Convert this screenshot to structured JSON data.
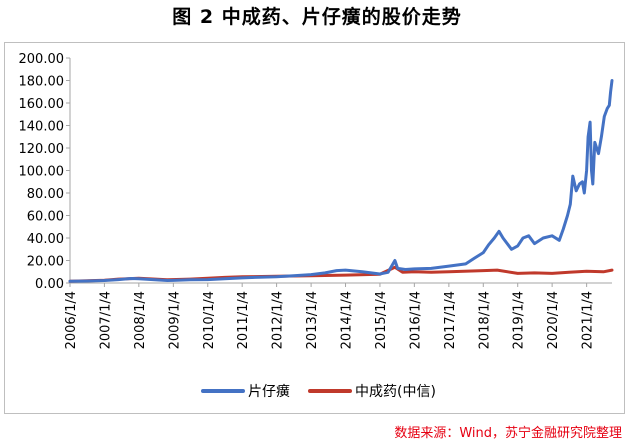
{
  "figure": {
    "title": "图 2  中成药、片仔癀的股价走势",
    "source": "数据来源：Wind，苏宁金融研究院整理"
  },
  "colors": {
    "series_pianzaihuang": "#4472c4",
    "series_zhongchengyao": "#c0392b",
    "axis": "#a6a6a6",
    "source_text": "#e60012"
  },
  "chart_data": {
    "type": "line",
    "title": "图 2  中成药、片仔癀的股价走势",
    "xlabel": "",
    "ylabel": "",
    "ylim": [
      0,
      200
    ],
    "y_ticks": [
      "0.00",
      "20.00",
      "40.00",
      "60.00",
      "80.00",
      "100.00",
      "120.00",
      "140.00",
      "160.00",
      "180.00",
      "200.00"
    ],
    "x_ticks": [
      "2006/1/4",
      "2007/1/4",
      "2008/1/4",
      "2009/1/4",
      "2010/1/4",
      "2011/1/4",
      "2012/1/4",
      "2013/1/4",
      "2014/1/4",
      "2015/1/4",
      "2016/1/4",
      "2017/1/4",
      "2018/1/4",
      "2019/1/4",
      "2020/1/4",
      "2021/1/4"
    ],
    "x_range": [
      "2006/1/4",
      "2021/9/30"
    ],
    "grid": false,
    "legend_position": "bottom",
    "series": [
      {
        "name": "片仔癀",
        "x": [
          "2006/1/4",
          "2006/7/1",
          "2007/1/4",
          "2007/6/1",
          "2007/10/15",
          "2008/1/4",
          "2008/6/1",
          "2008/11/1",
          "2009/1/4",
          "2009/7/1",
          "2010/1/4",
          "2010/7/1",
          "2011/1/4",
          "2011/7/1",
          "2012/1/4",
          "2012/7/1",
          "2013/1/4",
          "2013/6/1",
          "2013/10/1",
          "2014/1/4",
          "2014/7/1",
          "2015/1/4",
          "2015/4/1",
          "2015/6/12",
          "2015/7/10",
          "2015/10/1",
          "2016/1/4",
          "2016/7/1",
          "2017/1/4",
          "2017/7/1",
          "2017/10/1",
          "2018/1/4",
          "2018/3/1",
          "2018/5/1",
          "2018/6/20",
          "2018/8/1",
          "2018/10/30",
          "2019/1/4",
          "2019/3/1",
          "2019/5/1",
          "2019/7/1",
          "2019/10/1",
          "2020/1/4",
          "2020/3/20",
          "2020/5/1",
          "2020/6/15",
          "2020/7/15",
          "2020/8/10",
          "2020/9/15",
          "2020/10/20",
          "2020/11/20",
          "2020/12/10",
          "2021/1/4",
          "2021/1/20",
          "2021/2/10",
          "2021/2/25",
          "2021/3/10",
          "2021/4/1",
          "2021/5/10",
          "2021/6/10",
          "2021/7/10",
          "2021/8/10",
          "2021/9/1",
          "2021/9/15",
          "2021/9/30"
        ],
        "values": [
          1.5,
          1.8,
          2.2,
          3.0,
          4.0,
          3.8,
          3.0,
          2.2,
          2.3,
          2.8,
          3.0,
          3.8,
          4.5,
          5.2,
          5.5,
          6.5,
          7.5,
          9.0,
          11.0,
          11.5,
          10.0,
          8.0,
          9.5,
          20.0,
          13.0,
          12.0,
          12.5,
          13.0,
          15.0,
          17.0,
          22.0,
          27.0,
          34.0,
          40.0,
          46.0,
          40.0,
          30.0,
          33.0,
          40.0,
          42.0,
          35.0,
          40.0,
          42.0,
          38.0,
          48.0,
          60.0,
          70.0,
          95.0,
          82.0,
          88.0,
          90.0,
          80.0,
          100.0,
          130.0,
          143.0,
          100.0,
          88.0,
          125.0,
          115.0,
          130.0,
          148.0,
          155.0,
          158.0,
          170.0,
          180.0
        ]
      },
      {
        "name": "中成药(中信)",
        "x": [
          "2006/1/4",
          "2007/1/4",
          "2007/6/1",
          "2008/1/4",
          "2008/11/1",
          "2009/7/1",
          "2010/1/4",
          "2010/7/1",
          "2011/1/4",
          "2012/1/4",
          "2013/1/4",
          "2014/1/4",
          "2015/1/4",
          "2015/6/12",
          "2015/9/1",
          "2016/1/4",
          "2016/7/1",
          "2017/1/4",
          "2018/1/4",
          "2018/6/1",
          "2019/1/4",
          "2019/7/1",
          "2020/1/4",
          "2020/7/1",
          "2021/1/4",
          "2021/7/1",
          "2021/9/30"
        ],
        "values": [
          1.5,
          2.5,
          3.5,
          4.2,
          2.8,
          3.5,
          4.2,
          5.0,
          5.5,
          6.0,
          6.5,
          7.0,
          7.8,
          14.0,
          9.5,
          10.0,
          9.5,
          10.0,
          11.0,
          11.5,
          8.5,
          9.0,
          8.5,
          9.5,
          10.5,
          10.0,
          11.5
        ]
      }
    ]
  }
}
